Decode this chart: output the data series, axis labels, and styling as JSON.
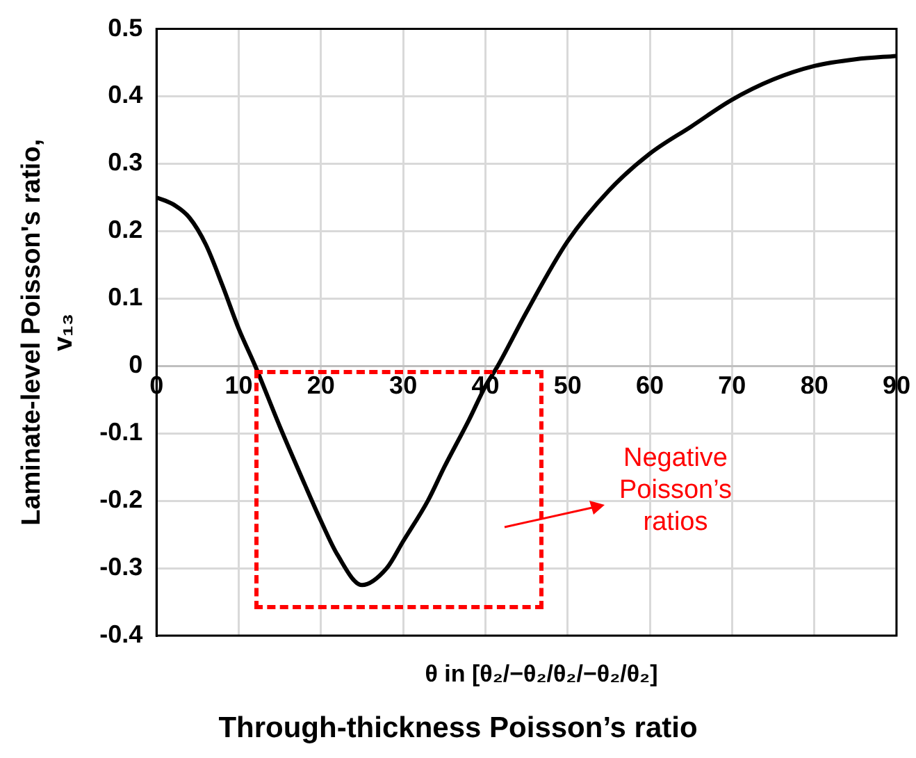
{
  "chart_data": {
    "type": "line",
    "title": "Through-thickness Poisson’s ratio",
    "xlabel": "θ in [θ₂/−θ₂/θ₂/−θ₂/θ₂]",
    "ylabel": "Laminate-level Poisson's ratio, v₁₃",
    "x": [
      0,
      2,
      4,
      6,
      8,
      10,
      12,
      15,
      18,
      20,
      22,
      25,
      28,
      30,
      33,
      35,
      38,
      40,
      41.5,
      45,
      50,
      55,
      60,
      65,
      70,
      75,
      80,
      85,
      90
    ],
    "series": [
      {
        "color": "#000000",
        "values": [
          0.25,
          0.24,
          0.22,
          0.18,
          0.12,
          0.055,
          0,
          -0.09,
          -0.175,
          -0.23,
          -0.28,
          -0.325,
          -0.3,
          -0.26,
          -0.2,
          -0.15,
          -0.08,
          -0.03,
          0,
          0.08,
          0.185,
          0.26,
          0.315,
          0.355,
          0.395,
          0.425,
          0.445,
          0.455,
          0.46
        ]
      }
    ],
    "xlim": [
      0,
      90
    ],
    "xticks": [
      0,
      10,
      20,
      30,
      40,
      50,
      60,
      70,
      80,
      90
    ],
    "ylim": [
      -0.4,
      0.5
    ],
    "yticks": [
      -0.4,
      -0.3,
      -0.2,
      -0.1,
      0,
      0.1,
      0.2,
      0.3,
      0.4,
      0.5
    ],
    "annotations": [
      "Negative Poisson’s ratios"
    ],
    "grid": true,
    "legend": false
  }
}
